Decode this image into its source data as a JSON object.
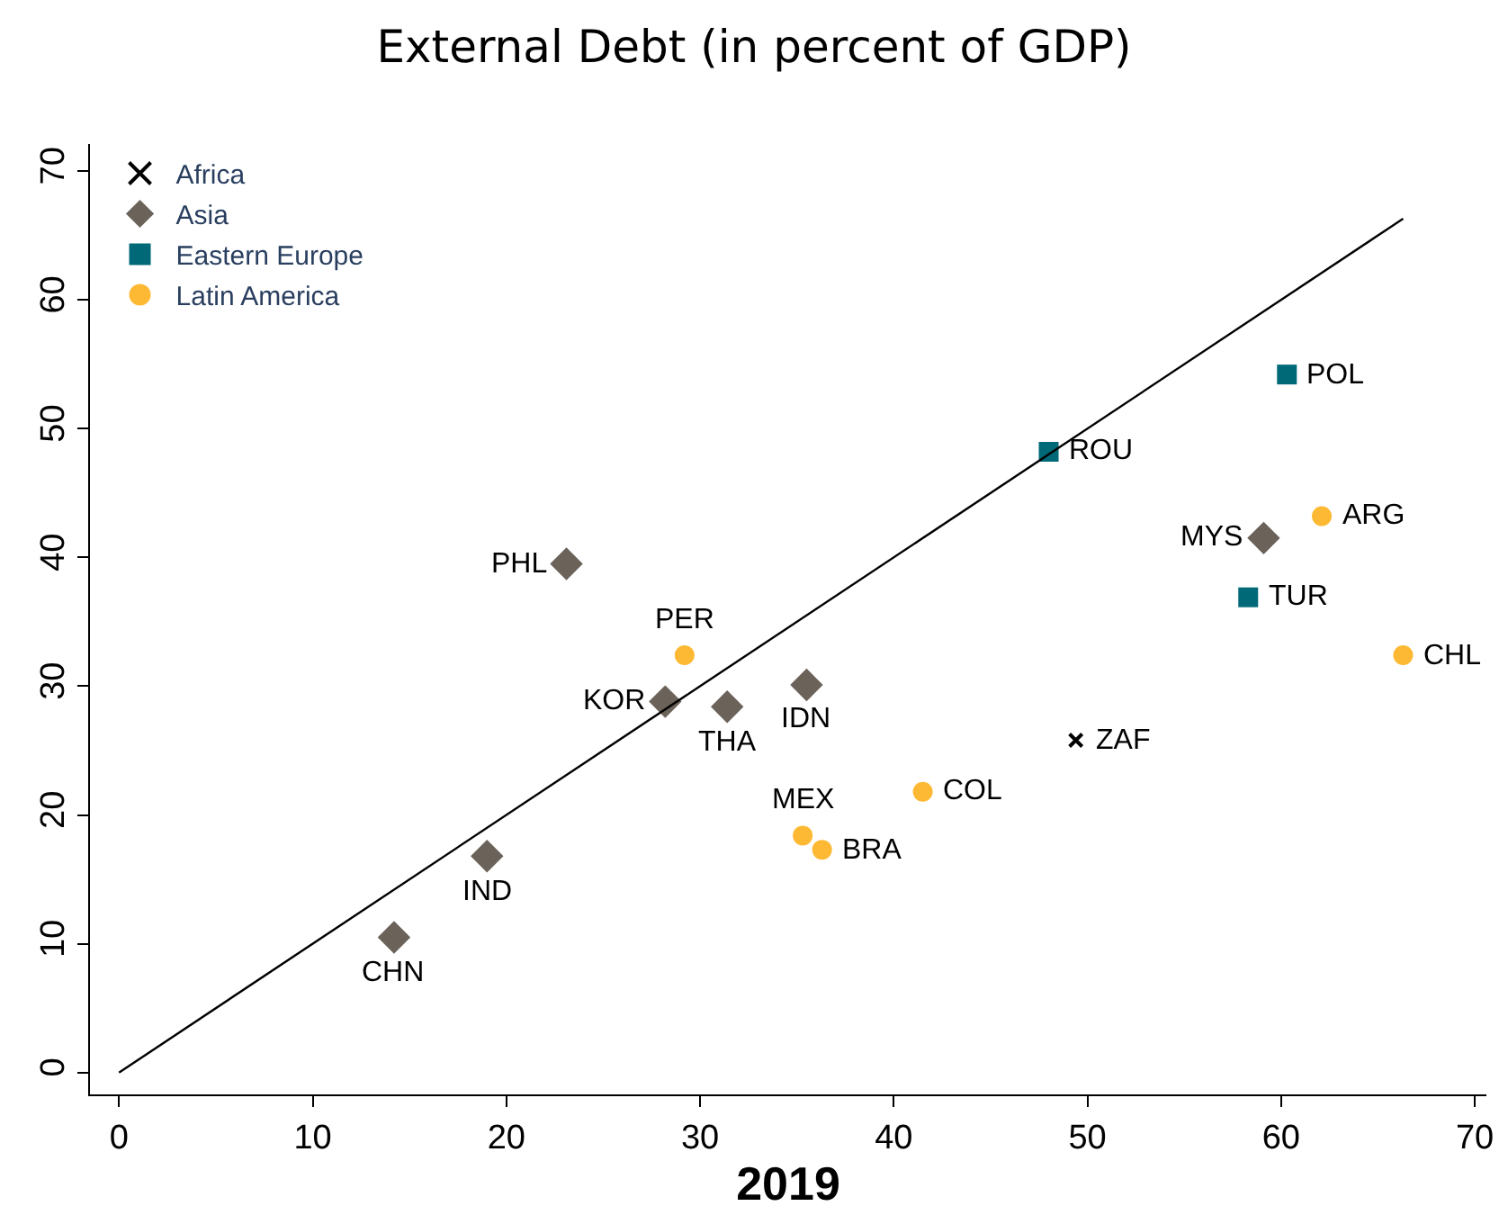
{
  "chart_data": {
    "type": "scatter",
    "title": "External Debt (in percent of GDP)",
    "xlabel": "2019",
    "xlim": [
      -1.5,
      70.6
    ],
    "xticks": [
      0,
      10,
      20,
      30,
      40,
      50,
      60,
      70
    ],
    "ylim": [
      -1.7,
      72.1
    ],
    "yticks": [
      0,
      10,
      20,
      30,
      40,
      50,
      60,
      70
    ],
    "grid": false,
    "legend": "top left",
    "series": [
      {
        "name": "Africa",
        "color": "#000000",
        "marker": "cross",
        "x": [
          49.4
        ],
        "values": [
          25.8
        ]
      },
      {
        "name": "Asia",
        "color": "#6b625a",
        "marker": "diamond",
        "x": [
          14.2,
          19.0,
          23.1,
          28.2,
          31.4,
          35.5,
          59.1
        ],
        "values": [
          10.5,
          16.8,
          39.5,
          28.8,
          28.4,
          30.1,
          41.5
        ]
      },
      {
        "name": "Eastern Europe",
        "color": "#006978",
        "marker": "square",
        "x": [
          48.0,
          60.3,
          58.3
        ],
        "values": [
          48.2,
          54.2,
          36.9
        ]
      },
      {
        "name": "Latin America",
        "color": "#fdb933",
        "marker": "circle",
        "x": [
          29.2,
          35.3,
          36.3,
          41.5,
          62.1,
          66.3
        ],
        "values": [
          32.4,
          18.4,
          17.3,
          21.8,
          43.2,
          32.4
        ]
      },
      {
        "type": "line",
        "color": "#000000",
        "marker": "none",
        "x": [
          0,
          66.3
        ],
        "values": [
          0,
          66.3
        ]
      }
    ],
    "annotations": [
      {
        "text": "ZAF",
        "x": 49.4,
        "y": 25.8
      },
      {
        "text": "CHN",
        "x": 14.2,
        "y": 10.5
      },
      {
        "text": "IND",
        "x": 19.0,
        "y": 16.8
      },
      {
        "text": "PHL",
        "x": 23.1,
        "y": 39.5
      },
      {
        "text": "KOR",
        "x": 28.2,
        "y": 28.8
      },
      {
        "text": "THA",
        "x": 31.4,
        "y": 28.4
      },
      {
        "text": "IDN",
        "x": 35.5,
        "y": 30.1
      },
      {
        "text": "MYS",
        "x": 59.1,
        "y": 41.5
      },
      {
        "text": "ROU",
        "x": 48.0,
        "y": 48.2
      },
      {
        "text": "POL",
        "x": 60.3,
        "y": 54.2
      },
      {
        "text": "TUR",
        "x": 58.3,
        "y": 36.9
      },
      {
        "text": "PER",
        "x": 29.2,
        "y": 32.4
      },
      {
        "text": "MEX",
        "x": 35.3,
        "y": 18.4
      },
      {
        "text": "BRA",
        "x": 36.3,
        "y": 17.3
      },
      {
        "text": "COL",
        "x": 41.5,
        "y": 21.8
      },
      {
        "text": "ARG",
        "x": 62.1,
        "y": 43.2
      },
      {
        "text": "CHL",
        "x": 66.3,
        "y": 32.4
      }
    ]
  }
}
